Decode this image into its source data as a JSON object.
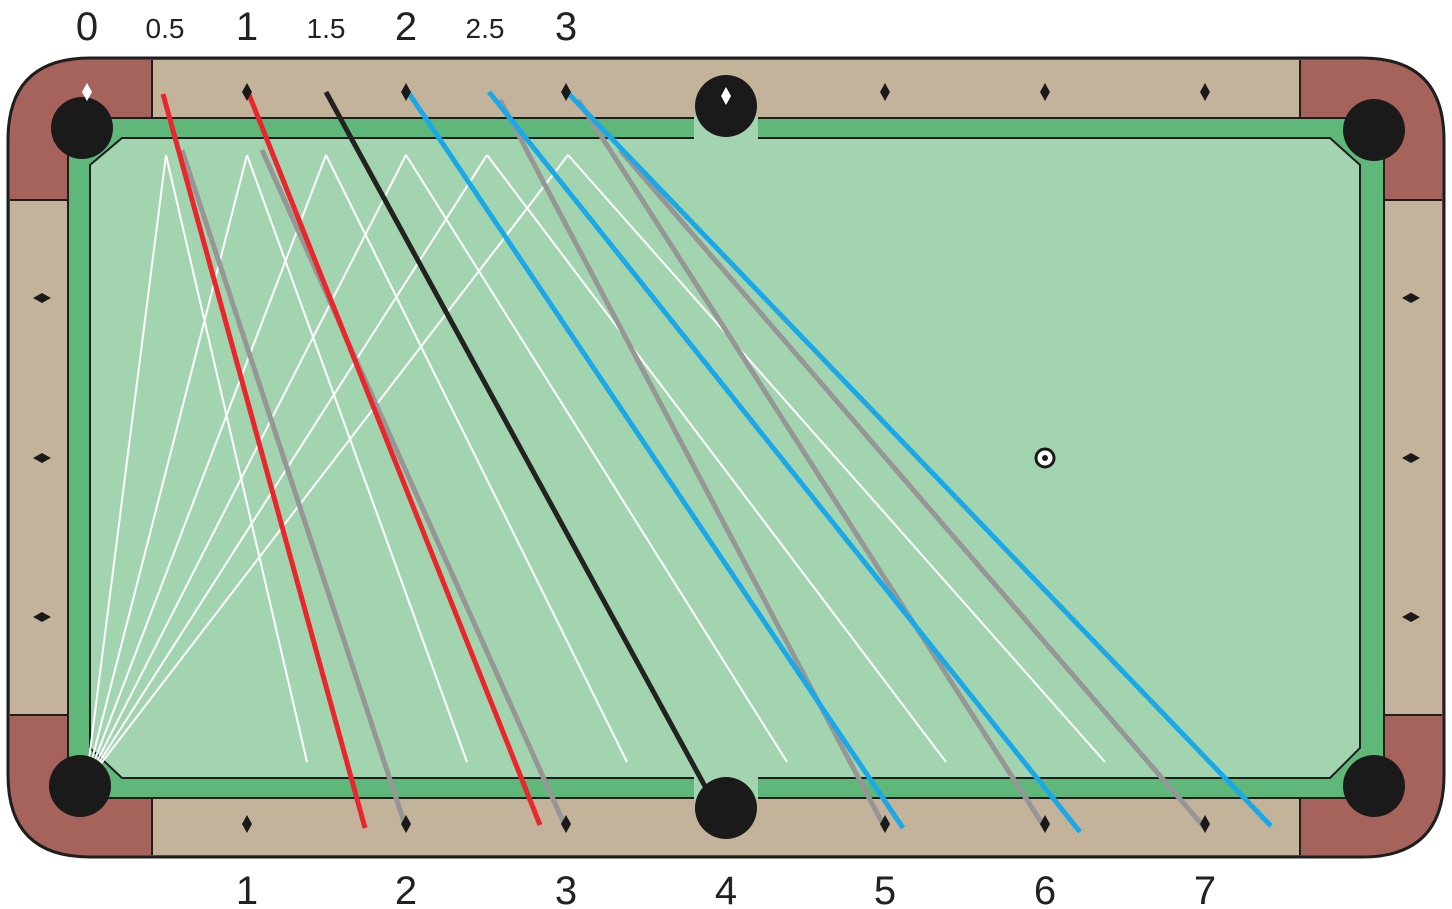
{
  "top_labels": [
    "0",
    "0.5",
    "1",
    "1.5",
    "2",
    "2.5",
    "3"
  ],
  "bottom_labels": [
    "1",
    "2",
    "3",
    "4",
    "5",
    "6",
    "7"
  ],
  "colors": {
    "cloth": "#a3d4b0",
    "cushion": "#5fb87a",
    "rail": "#c2b39a",
    "corner": "#a6635c",
    "outline": "#1e1e1e",
    "pocket": "#1a1a1a",
    "red": "#e8262c",
    "black": "#222222",
    "blue": "#1aa8e8",
    "gray": "#969696",
    "white": "#ffffff"
  },
  "icons": {
    "diamond": "rail-diamond-icon",
    "pocket": "pocket-icon",
    "spot": "spot-icon"
  }
}
